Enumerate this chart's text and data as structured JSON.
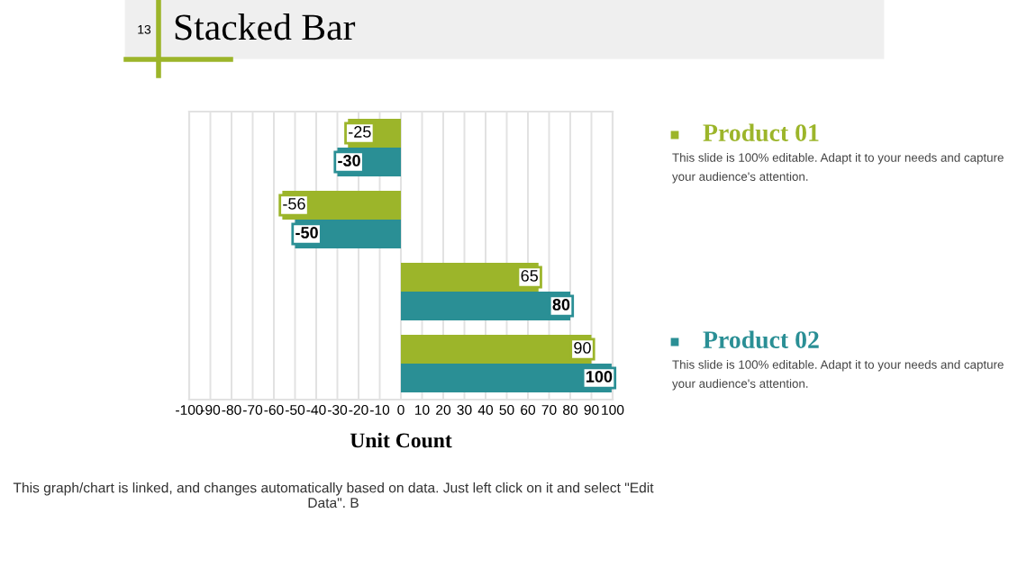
{
  "chart_data": {
    "type": "bar",
    "orientation": "horizontal",
    "title": "Stacked Bar",
    "xlabel": "Unit Count",
    "categories": [
      null,
      null,
      null,
      null
    ],
    "series": [
      {
        "name": "Product 01",
        "color": "#9cb52a",
        "values": [
          -25,
          -56,
          65,
          90
        ]
      },
      {
        "name": "Product 02",
        "color": "#2a8f95",
        "values": [
          -30,
          -50,
          80,
          100
        ]
      }
    ],
    "xlim": [
      -100,
      100
    ],
    "xticks": [
      -100,
      -90,
      -80,
      -70,
      -60,
      -50,
      -40,
      -30,
      -20,
      -10,
      0,
      10,
      20,
      30,
      40,
      50,
      60,
      70,
      80,
      90,
      100
    ],
    "grid": "x",
    "legend": "right",
    "data_labels": true,
    "annotations": [
      "13",
      "This slide is 100% editable. Adapt it to your needs and capture your audience's attention.",
      "This slide is 100% editable. Adapt it to your needs and capture your audience's attention.",
      "This graph/chart is linked, and changes automatically based on data. Just left click on it and select \"Edit Data\". B"
    ]
  }
}
